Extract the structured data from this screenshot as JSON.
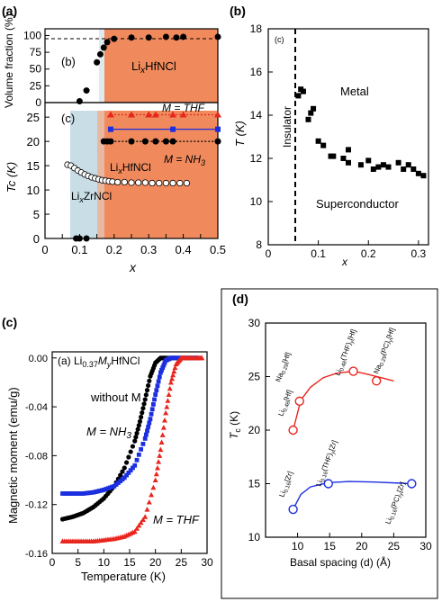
{
  "panel_labels": {
    "a": "(a)",
    "b": "(b)",
    "c": "(c)",
    "d": "(d)"
  },
  "sub_labels": {
    "a_top": "(b)",
    "a_bottom": "(c)",
    "b_inner": "(c)",
    "c_inner": "(a)"
  },
  "text": {
    "lixhfncl_top": "Li",
    "lixhfncl_top_sub": "x",
    "lixhfncl_top_tail": "HfNCl",
    "m_thf": "M = THF",
    "m_nh3": "M = NH",
    "m_nh3_sub": "3",
    "lixhfncl": "Li",
    "lixhfncl_sub": "x",
    "lixhfncl_tail": "HfNCl",
    "lixzrncl": "Li",
    "lixzrncl_sub": "x",
    "lixzrncl_tail": "ZrNCl",
    "metal": "Metal",
    "insulator": "Insulator",
    "superconductor": "Superconductor",
    "c_title_li": "Li",
    "c_title_sub1": "0.37",
    "c_title_m": "M",
    "c_title_sub2": "y",
    "c_title_tail": "HfNCl",
    "without_m": "without M",
    "c_nh3": "M = NH",
    "c_nh3_sub": "3",
    "c_thf": "M = THF"
  },
  "colors": {
    "orange": "#f08a5d",
    "lightblue": "#c9dde6",
    "red": "#e8261e",
    "blue": "#1b2ee0",
    "black": "#000000"
  },
  "chart_data": [
    {
      "type": "scatter",
      "id": "a_top",
      "ylabel": "Volume fraction (%)",
      "xlim": [
        0,
        0.5
      ],
      "ylim": [
        0,
        110
      ],
      "yticks": [
        0,
        25,
        50,
        75,
        100
      ],
      "reference_line_y": 100,
      "series": [
        {
          "x": [
            0.1,
            0.12,
            0.15,
            0.16,
            0.17,
            0.18,
            0.2,
            0.25,
            0.3,
            0.35,
            0.38,
            0.4,
            0.5
          ],
          "y": [
            2,
            18,
            60,
            72,
            82,
            90,
            95,
            97,
            97,
            98,
            97,
            98,
            98
          ]
        }
      ]
    },
    {
      "type": "scatter",
      "id": "a_bottom",
      "xlabel": "x",
      "ylabel": "Tc (K)",
      "xlim": [
        0,
        0.5
      ],
      "ylim": [
        0,
        28
      ],
      "xticks": [
        0,
        0.05,
        0.1,
        0.15,
        0.2,
        0.25,
        0.3,
        0.35,
        0.4,
        0.45,
        0.5
      ],
      "xticklabels": [
        "0",
        "0.05",
        "0.1",
        "0.15",
        "0.2",
        "0.25",
        "0.3",
        "0.35",
        "0.4",
        "0.45",
        "0.5"
      ],
      "yticks": [
        0,
        5,
        10,
        15,
        20,
        25
      ],
      "series": [
        {
          "name": "M = THF",
          "x": [
            0.19,
            0.25,
            0.3,
            0.32,
            0.37,
            0.4,
            0.5
          ],
          "y": [
            25.5,
            25.5,
            25.5,
            25.5,
            25.5,
            25.5,
            25.5
          ]
        },
        {
          "name": "M = NH3",
          "x": [
            0.19,
            0.37,
            0.5
          ],
          "y": [
            22.5,
            22.5,
            22.5
          ]
        },
        {
          "name": "LixHfNCl",
          "x": [
            0.17,
            0.18,
            0.19,
            0.25,
            0.29,
            0.32,
            0.35,
            0.37,
            0.5
          ],
          "y": [
            20,
            20,
            20,
            20,
            20,
            20,
            20,
            20,
            20
          ]
        },
        {
          "name": "LixZrNCl",
          "x": [
            0.065,
            0.075,
            0.085,
            0.095,
            0.105,
            0.115,
            0.125,
            0.135,
            0.145,
            0.155,
            0.165,
            0.175,
            0.185,
            0.195,
            0.21,
            0.23,
            0.25,
            0.27,
            0.29,
            0.31,
            0.33,
            0.35,
            0.37,
            0.39,
            0.41
          ],
          "y": [
            15.2,
            15.0,
            14.5,
            14.0,
            13.6,
            13.2,
            12.9,
            12.6,
            12.4,
            12.2,
            12.0,
            11.9,
            11.8,
            11.7,
            11.6,
            11.6,
            11.5,
            11.5,
            11.5,
            11.4,
            11.4,
            11.4,
            11.4,
            11.4,
            11.4
          ]
        },
        {
          "name": "zero",
          "x": [
            0.09,
            0.1,
            0.12
          ],
          "y": [
            0,
            0,
            0
          ]
        }
      ]
    },
    {
      "type": "scatter",
      "id": "b",
      "xlabel": "x",
      "ylabel": "T (K)",
      "xlim": [
        0,
        0.32
      ],
      "ylim": [
        8,
        18
      ],
      "xticks": [
        0,
        0.1,
        0.2,
        0.3
      ],
      "xticklabels": [
        "0",
        "0.1",
        "0.2",
        "0.3"
      ],
      "yticks": [
        8,
        10,
        12,
        14,
        16,
        18
      ],
      "boundary_x": 0.055,
      "series": [
        {
          "x": [
            0.06,
            0.065,
            0.07,
            0.08,
            0.085,
            0.09,
            0.1,
            0.11,
            0.125,
            0.13,
            0.15,
            0.16,
            0.16,
            0.185,
            0.2,
            0.21,
            0.22,
            0.23,
            0.24,
            0.26,
            0.27,
            0.28,
            0.29,
            0.3,
            0.31
          ],
          "y": [
            14.9,
            15.2,
            15.1,
            13.8,
            14.1,
            14.3,
            12.8,
            12.6,
            12.1,
            12.1,
            12.0,
            12.4,
            11.8,
            11.7,
            11.9,
            11.5,
            11.6,
            11.7,
            11.6,
            11.8,
            11.5,
            11.7,
            11.5,
            11.3,
            11.2
          ]
        }
      ]
    },
    {
      "type": "line",
      "id": "c",
      "xlabel": "Temperature (K)",
      "ylabel": "Magnetic moment (emu/g)",
      "xlim": [
        0,
        30
      ],
      "ylim": [
        -0.16,
        0.005
      ],
      "xticks": [
        0,
        5,
        10,
        15,
        20,
        25,
        30
      ],
      "yticks": [
        0,
        -0.04,
        -0.08,
        -0.12,
        -0.16
      ],
      "yticklabels": [
        "0.00",
        "-0.04",
        "-0.08",
        "-0.12",
        "-0.16"
      ],
      "series": [
        {
          "name": "without M",
          "x": [
            2,
            4,
            6,
            8,
            10,
            12,
            14,
            16,
            17,
            18,
            19,
            20,
            21,
            22,
            24,
            26,
            28
          ],
          "y": [
            -0.132,
            -0.13,
            -0.127,
            -0.122,
            -0.115,
            -0.105,
            -0.09,
            -0.068,
            -0.052,
            -0.034,
            -0.015,
            -0.004,
            0.0,
            0.0,
            0.0,
            0.0,
            0.0
          ]
        },
        {
          "name": "M = NH3",
          "x": [
            2,
            4,
            6,
            8,
            10,
            12,
            14,
            16,
            18,
            19,
            20,
            21,
            22,
            23,
            24,
            26,
            28
          ],
          "y": [
            -0.111,
            -0.111,
            -0.111,
            -0.11,
            -0.108,
            -0.105,
            -0.098,
            -0.088,
            -0.066,
            -0.05,
            -0.03,
            -0.012,
            -0.002,
            0.0,
            0.0,
            0.0,
            0.0
          ]
        },
        {
          "name": "M = THF",
          "x": [
            2,
            4,
            6,
            8,
            10,
            12,
            14,
            16,
            18,
            20,
            21,
            22,
            23,
            24,
            25,
            26,
            28,
            29
          ],
          "y": [
            -0.15,
            -0.15,
            -0.15,
            -0.15,
            -0.149,
            -0.148,
            -0.146,
            -0.142,
            -0.13,
            -0.1,
            -0.075,
            -0.045,
            -0.02,
            -0.005,
            0.0,
            0.0,
            0.0,
            0.0
          ]
        }
      ]
    },
    {
      "type": "scatter",
      "id": "d",
      "xlabel": "Basal spacing (d) (Å)",
      "ylabel": "T",
      "ylabel_sub": "c",
      "ylabel_tail": " (K)",
      "xlim": [
        5,
        30
      ],
      "ylim": [
        10,
        30
      ],
      "xticks": [
        10,
        15,
        20,
        25,
        30
      ],
      "yticks": [
        10,
        15,
        20,
        25,
        30
      ],
      "series": [
        {
          "name": "Hf",
          "x": [
            9.3,
            10.3,
            18.7,
            22.3
          ],
          "y": [
            20.0,
            22.7,
            25.5,
            24.6
          ]
        },
        {
          "name": "Zr",
          "x": [
            9.3,
            14.8,
            27.8
          ],
          "y": [
            12.6,
            15.0,
            15.0
          ]
        }
      ],
      "point_labels": [
        {
          "text": "Li",
          "sub": "0.48",
          "tail": "[Hf]"
        },
        {
          "text": "Na",
          "sub": "0.29",
          "tail": "[Hf]"
        },
        {
          "text": "Li",
          "sub": "0.48",
          "tail": "(THF)",
          "sub2": "y",
          "tail2": "[Hf]"
        },
        {
          "text": "Na",
          "sub": "0.29",
          "tail": "(PC)",
          "sub2": "y",
          "tail2": "[Hf]"
        },
        {
          "text": "Li",
          "sub": "0.16",
          "tail": "[Zr]"
        },
        {
          "text": "Li",
          "sub": "0.16",
          "tail": "(THF)",
          "sub2": "y",
          "tail2": "[Zr]"
        },
        {
          "text": "Li",
          "sub": "0.16",
          "tail": "(PC)",
          "sub2": "y",
          "tail2": "[Zr]"
        }
      ]
    }
  ]
}
